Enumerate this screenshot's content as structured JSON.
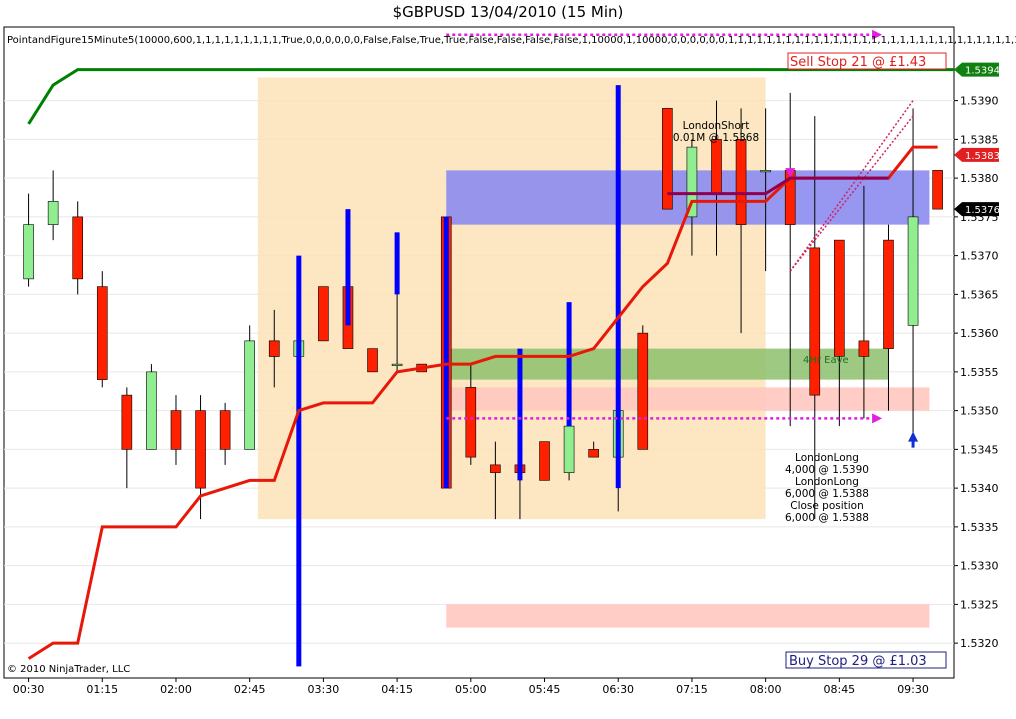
{
  "header": {
    "title": "$GBPUSD  13/04/2010 (15 Min)"
  },
  "strategy_label": "PointandFigure15Minute5(10000,600,1,1,1,1,1,1,1,1,1,True,0,0,0,0,0,0,False,False,True,True,False,False,False,False,1,10000,1,10000,0,0,0,0,0,0,1,1,1,1,1,1,1,1,1,1,1,1,1,1,1,1,1,1,1,1,1,1,1,1,1,1,1,1,1,1,1,1,1",
  "copyright": "© 2010 NinjaTrader, LLC",
  "orders": {
    "sell_stop": "Sell Stop  21  @  £1.43",
    "buy_stop": "Buy Stop  29  @  £1.03"
  },
  "price_markers": {
    "top": "1.5394",
    "last_red": "1.5383",
    "last_black": "1.5376"
  },
  "annotations": {
    "london_short": [
      "LondonShort",
      "0.01M @ 1.5368"
    ],
    "london_long": [
      "LondonLong",
      "4,000 @ 1.5390",
      "LondonLong",
      "6,000 @ 1.5388",
      "Close position",
      "6,000 @ 1.5388"
    ],
    "zone_label": "4Hr Eave"
  },
  "colors": {
    "bull_body": "#90EE90",
    "bear_body": "#FF2000",
    "range_bar": "#0000FF",
    "indicator_line": "#E81808",
    "upper_line": "#008000",
    "session_band": "#FDE3B8",
    "blue_zone": "#8C8CF0",
    "green_zone": "#8CC06C",
    "pink_zone": "#FFC8C0",
    "magenta": "#E020E0",
    "maroon": "#900050"
  },
  "chart_data": {
    "type": "candlestick",
    "title": "$GBPUSD  13/04/2010 (15 Min)",
    "y_axis": {
      "ticks": [
        "1.5320",
        "1.5325",
        "1.5330",
        "1.5335",
        "1.5340",
        "1.5345",
        "1.5350",
        "1.5355",
        "1.5360",
        "1.5365",
        "1.5370",
        "1.5375",
        "1.5380",
        "1.5385",
        "1.5390"
      ],
      "range": [
        1.53155,
        1.53995
      ]
    },
    "x_axis": {
      "ticks": [
        "00:30",
        "01:15",
        "02:00",
        "02:45",
        "03:30",
        "04:15",
        "05:00",
        "05:45",
        "06:30",
        "07:15",
        "08:00",
        "08:45",
        "09:30"
      ],
      "range": [
        "00:15",
        "09:55"
      ]
    },
    "bars": [
      {
        "t": "00:30",
        "o": 1.5367,
        "h": 1.5378,
        "l": 1.5366,
        "c": 1.5374
      },
      {
        "t": "00:45",
        "o": 1.5374,
        "h": 1.5381,
        "l": 1.5372,
        "c": 1.5377
      },
      {
        "t": "01:00",
        "o": 1.5375,
        "h": 1.5377,
        "l": 1.5365,
        "c": 1.5367
      },
      {
        "t": "01:15",
        "o": 1.5366,
        "h": 1.5368,
        "l": 1.5353,
        "c": 1.5354
      },
      {
        "t": "01:30",
        "o": 1.5352,
        "h": 1.5353,
        "l": 1.534,
        "c": 1.5345
      },
      {
        "t": "01:45",
        "o": 1.5345,
        "h": 1.5356,
        "l": 1.5345,
        "c": 1.5355
      },
      {
        "t": "02:00",
        "o": 1.535,
        "h": 1.5352,
        "l": 1.5343,
        "c": 1.5345
      },
      {
        "t": "02:15",
        "o": 1.535,
        "h": 1.5352,
        "l": 1.5336,
        "c": 1.534
      },
      {
        "t": "02:30",
        "o": 1.535,
        "h": 1.5351,
        "l": 1.5343,
        "c": 1.5345
      },
      {
        "t": "02:45",
        "o": 1.5345,
        "h": 1.5361,
        "l": 1.5345,
        "c": 1.5359
      },
      {
        "t": "03:00",
        "o": 1.5359,
        "h": 1.5359,
        "l": 1.5357,
        "c": 1.5357,
        "range": false
      },
      {
        "t": "03:00b",
        "o": 1.5359,
        "h": 1.5363,
        "l": 1.5353,
        "c": 1.5357
      },
      {
        "t": "03:15",
        "o": 1.5357,
        "h": 1.536,
        "l": 1.5317,
        "c": 1.5359,
        "range": true,
        "rlow": 1.5317,
        "rhigh": 1.537
      },
      {
        "t": "03:30",
        "o": 1.5366,
        "h": 1.5366,
        "l": 1.5359,
        "c": 1.5359
      },
      {
        "t": "03:45",
        "o": 1.5366,
        "h": 1.5366,
        "l": 1.5358,
        "c": 1.5358,
        "range": true,
        "rlow": 1.5361,
        "rhigh": 1.5376
      },
      {
        "t": "04:00",
        "o": 1.5358,
        "h": 1.5358,
        "l": 1.5355,
        "c": 1.5355
      },
      {
        "t": "04:15",
        "o": 1.5356,
        "h": 1.5373,
        "l": 1.5355,
        "c": 1.5356,
        "range": true,
        "rlow": 1.5365,
        "rhigh": 1.5373
      },
      {
        "t": "04:30",
        "o": 1.5356,
        "h": 1.5356,
        "l": 1.5355,
        "c": 1.5355
      },
      {
        "t": "04:45",
        "o": 1.5375,
        "h": 1.5375,
        "l": 1.534,
        "c": 1.534,
        "range": true,
        "rlow": 1.534,
        "rhigh": 1.5375
      },
      {
        "t": "05:00",
        "o": 1.5353,
        "h": 1.5356,
        "l": 1.5343,
        "c": 1.5344
      },
      {
        "t": "05:15",
        "o": 1.5343,
        "h": 1.5346,
        "l": 1.5336,
        "c": 1.5342
      },
      {
        "t": "05:30",
        "o": 1.5343,
        "h": 1.5346,
        "l": 1.5336,
        "c": 1.5342,
        "range": true,
        "rlow": 1.5341,
        "rhigh": 1.5358
      },
      {
        "t": "05:45",
        "o": 1.5346,
        "h": 1.5346,
        "l": 1.5341,
        "c": 1.5341
      },
      {
        "t": "06:00",
        "o": 1.5342,
        "h": 1.5354,
        "l": 1.5341,
        "c": 1.5348,
        "range": true,
        "rlow": 1.5348,
        "rhigh": 1.5364
      },
      {
        "t": "06:15",
        "o": 1.5345,
        "h": 1.5346,
        "l": 1.5344,
        "c": 1.5344
      },
      {
        "t": "06:30",
        "o": 1.5344,
        "h": 1.535,
        "l": 1.5337,
        "c": 1.535,
        "range": true,
        "rlow": 1.534,
        "rhigh": 1.5392
      },
      {
        "t": "06:45",
        "o": 1.536,
        "h": 1.5361,
        "l": 1.5345,
        "c": 1.5345
      },
      {
        "t": "07:00",
        "o": 1.5389,
        "h": 1.5389,
        "l": 1.5376,
        "c": 1.5376
      },
      {
        "t": "07:15",
        "o": 1.5375,
        "h": 1.5385,
        "l": 1.537,
        "c": 1.5384
      },
      {
        "t": "07:30",
        "o": 1.5385,
        "h": 1.539,
        "l": 1.537,
        "c": 1.5378
      },
      {
        "t": "07:45",
        "o": 1.5385,
        "h": 1.5389,
        "l": 1.536,
        "c": 1.5374
      },
      {
        "t": "08:00",
        "o": 1.5381,
        "h": 1.5389,
        "l": 1.5368,
        "c": 1.5381
      },
      {
        "t": "08:15",
        "o": 1.5381,
        "h": 1.5391,
        "l": 1.5348,
        "c": 1.5374
      },
      {
        "t": "08:30",
        "o": 1.5371,
        "h": 1.5388,
        "l": 1.5336,
        "c": 1.5352
      },
      {
        "t": "08:45",
        "o": 1.5372,
        "h": 1.5372,
        "l": 1.5348,
        "c": 1.5357
      },
      {
        "t": "09:00",
        "o": 1.5359,
        "h": 1.5379,
        "l": 1.5349,
        "c": 1.5357
      },
      {
        "t": "09:15",
        "o": 1.5372,
        "h": 1.5374,
        "l": 1.535,
        "c": 1.5358
      },
      {
        "t": "09:30",
        "o": 1.5361,
        "h": 1.5389,
        "l": 1.5346,
        "c": 1.5375
      },
      {
        "t": "09:45",
        "o": 1.5381,
        "h": 1.5381,
        "l": 1.5376,
        "c": 1.5376
      }
    ],
    "overlay_lines": [
      {
        "color": "#008000",
        "points": [
          [
            "00:30",
            1.5387
          ],
          [
            "00:45",
            1.5392
          ],
          [
            "01:00",
            1.5394
          ],
          [
            "09:55",
            1.5394
          ]
        ]
      },
      {
        "color": "#E81808",
        "points": [
          [
            "00:30",
            1.5318
          ],
          [
            "00:45",
            1.532
          ],
          [
            "01:00",
            1.532
          ],
          [
            "01:15",
            1.5335
          ],
          [
            "01:45",
            1.5335
          ],
          [
            "02:00",
            1.5335
          ],
          [
            "02:15",
            1.5339
          ],
          [
            "02:45",
            1.5341
          ],
          [
            "03:00",
            1.5341
          ],
          [
            "03:15",
            1.535
          ],
          [
            "03:30",
            1.5351
          ],
          [
            "04:00",
            1.5351
          ],
          [
            "04:15",
            1.5355
          ],
          [
            "04:45",
            1.5356
          ],
          [
            "05:00",
            1.5356
          ],
          [
            "05:15",
            1.5357
          ],
          [
            "06:00",
            1.5357
          ],
          [
            "06:15",
            1.5358
          ],
          [
            "06:45",
            1.5366
          ],
          [
            "07:00",
            1.5369
          ],
          [
            "07:15",
            1.5377
          ],
          [
            "07:45",
            1.5377
          ],
          [
            "08:00",
            1.5377
          ],
          [
            "08:15",
            1.538
          ],
          [
            "09:00",
            1.538
          ],
          [
            "09:15",
            1.538
          ],
          [
            "09:30",
            1.5384
          ],
          [
            "09:45",
            1.5384
          ]
        ]
      }
    ],
    "zones": [
      {
        "name": "session",
        "from": "02:50",
        "to": "08:00",
        "low": 1.5336,
        "high": 1.5393
      },
      {
        "name": "blue",
        "from": "04:45",
        "to": "09:40",
        "low": 1.5374,
        "high": 1.5381
      },
      {
        "name": "green",
        "from": "04:45",
        "to": "09:15",
        "low": 1.5354,
        "high": 1.5358
      },
      {
        "name": "pink-upper",
        "from": "04:45",
        "to": "09:40",
        "low": 1.535,
        "high": 1.5353
      },
      {
        "name": "pink-lower",
        "from": "04:45",
        "to": "09:40",
        "low": 1.5322,
        "high": 1.5325
      }
    ]
  }
}
